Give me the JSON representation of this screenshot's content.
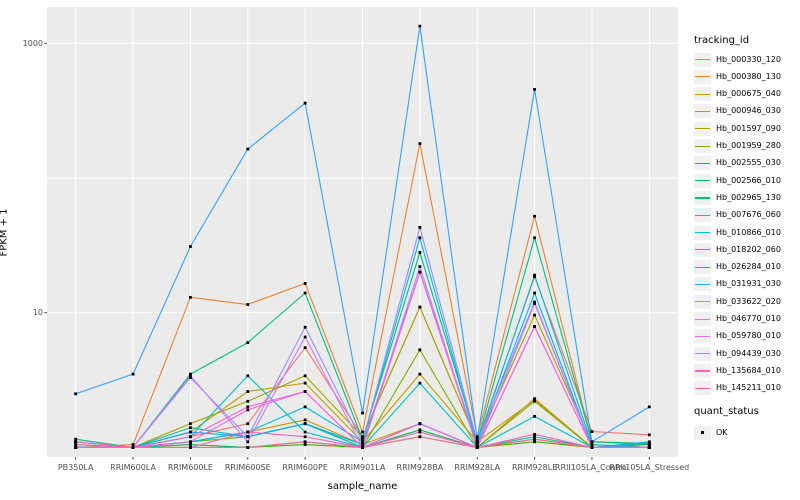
{
  "chart_data": {
    "type": "line",
    "title": "",
    "xlabel": "sample_name",
    "ylabel": "FPKM + 1",
    "yscale": "log10",
    "ylim": [
      0.85,
      1900
    ],
    "ytick_values": [
      10,
      1000
    ],
    "ytick_labels": [
      "10",
      "1000"
    ],
    "gridlines_y": [
      10,
      100,
      1000
    ],
    "grid": "on",
    "panel_bg": "#ebebeb",
    "grid_color": "#ffffff",
    "tick_label_color": "#4d4d4d",
    "marker": "black-square",
    "legend_position": "right",
    "legend_title": "tracking_id",
    "legend2_title": "quant_status",
    "legend2_items": [
      {
        "label": "OK",
        "marker": "black-square"
      }
    ],
    "categories": [
      "PB350LA",
      "RRIM600LA",
      "RRIM600LE",
      "RRIM600SE",
      "RRIM600PE",
      "RRIM901LA",
      "RRIM928BA",
      "RRIM928LA",
      "RRIM928LE",
      "RRII105LA_Control",
      "RRII105LA_Stressed"
    ],
    "series": [
      {
        "name": "Hb_000330_120",
        "color": "#F8766D",
        "values": [
          1.1,
          1.0,
          1.2,
          1.5,
          5.5,
          1.2,
          11,
          1.1,
          18.5,
          1.31,
          1.24
        ]
      },
      {
        "name": "Hb_000380_130",
        "color": "#EA8331",
        "values": [
          1.0,
          1.05,
          13,
          11.5,
          16.5,
          1.3,
          180,
          1.2,
          52,
          1.1,
          1.05
        ]
      },
      {
        "name": "Hb_000675_040",
        "color": "#D89000",
        "values": [
          1.0,
          1.0,
          1.1,
          1.3,
          1.6,
          1.05,
          1.5,
          1.0,
          2.3,
          1.0,
          1.0
        ]
      },
      {
        "name": "Hb_000946_030",
        "color": "#C09B00",
        "values": [
          1.0,
          1.0,
          1.3,
          2.6,
          3.0,
          1.1,
          3.5,
          1.1,
          2.25,
          1.0,
          1.0
        ]
      },
      {
        "name": "Hb_001597_090",
        "color": "#A3A500",
        "values": [
          1.0,
          1.0,
          1.5,
          2.2,
          3.4,
          1.2,
          11,
          1.1,
          9.6,
          1.05,
          1.0
        ]
      },
      {
        "name": "Hb_001959_280",
        "color": "#7CAE00",
        "values": [
          1.0,
          1.0,
          1.1,
          1.2,
          1.5,
          1.0,
          5.3,
          1.0,
          2.2,
          1.0,
          1.0
        ]
      },
      {
        "name": "Hb_002555_030",
        "color": "#39B600",
        "values": [
          1.0,
          1.0,
          1.0,
          1.0,
          1.05,
          1.0,
          1.2,
          1.0,
          1.1,
          1.0,
          1.0
        ]
      },
      {
        "name": "Hb_002566_010",
        "color": "#00BB4E",
        "values": [
          1.05,
          1.0,
          1.05,
          1.0,
          1.1,
          1.0,
          1.35,
          1.0,
          1.15,
          1.0,
          1.05
        ]
      },
      {
        "name": "Hb_002965_130",
        "color": "#00BF7D",
        "values": [
          1.15,
          1.0,
          3.5,
          6.0,
          14,
          1.15,
          28,
          1.1,
          36,
          1.1,
          1.07
        ]
      },
      {
        "name": "Hb_007676_060",
        "color": "#00C1A3",
        "values": [
          1.1,
          1.0,
          1.4,
          1.2,
          1.5,
          1.0,
          1.5,
          1.0,
          1.2,
          1.0,
          1.07
        ]
      },
      {
        "name": "Hb_010866_010",
        "color": "#00BFC4",
        "values": [
          1.0,
          1.0,
          1.2,
          3.4,
          1.3,
          1.0,
          3.0,
          1.0,
          1.7,
          1.0,
          1.0
        ]
      },
      {
        "name": "Hb_018202_060",
        "color": "#00BAE0",
        "values": [
          1.0,
          1.0,
          1.1,
          1.3,
          2.0,
          1.1,
          36,
          1.05,
          19,
          1.05,
          1.0
        ]
      },
      {
        "name": "Hb_026284_010",
        "color": "#00B0F6",
        "values": [
          1.1,
          1.0,
          1.3,
          1.2,
          1.5,
          1.05,
          20,
          1.05,
          14,
          1.0,
          1.1
        ]
      },
      {
        "name": "Hb_031931_030",
        "color": "#35A2FF",
        "values": [
          2.5,
          3.5,
          31,
          164,
          360,
          1.8,
          1340,
          1.15,
          455,
          1.1,
          2.0
        ]
      },
      {
        "name": "Hb_033622_020",
        "color": "#9590FF",
        "values": [
          1.0,
          1.0,
          3.3,
          1.2,
          7.8,
          1.1,
          43,
          1.1,
          12,
          1.0,
          1.0
        ]
      },
      {
        "name": "Hb_046770_010",
        "color": "#C77CFF",
        "values": [
          1.0,
          1.0,
          3.4,
          1.1,
          6.6,
          1.0,
          22,
          1.0,
          11.7,
          1.0,
          1.0
        ]
      },
      {
        "name": "Hb_059780_010",
        "color": "#E76BF3",
        "values": [
          1.0,
          1.0,
          1.1,
          1.9,
          2.6,
          1.0,
          1.5,
          1.0,
          7.9,
          1.0,
          1.0
        ]
      },
      {
        "name": "Hb_094439_030",
        "color": "#FA62DB",
        "values": [
          1.0,
          1.0,
          1.2,
          2.0,
          2.6,
          1.0,
          20,
          1.0,
          7.9,
          1.0,
          1.0
        ]
      },
      {
        "name": "Hb_135684_010",
        "color": "#FF62BC",
        "values": [
          1.05,
          1.0,
          1.0,
          1.3,
          1.2,
          1.0,
          1.3,
          1.0,
          1.25,
          1.0,
          1.0
        ]
      },
      {
        "name": "Hb_145211_010",
        "color": "#FF6A98",
        "values": [
          1.1,
          1.0,
          1.0,
          1.0,
          1.1,
          1.0,
          1.2,
          1.0,
          1.15,
          1.0,
          1.0
        ]
      }
    ]
  }
}
